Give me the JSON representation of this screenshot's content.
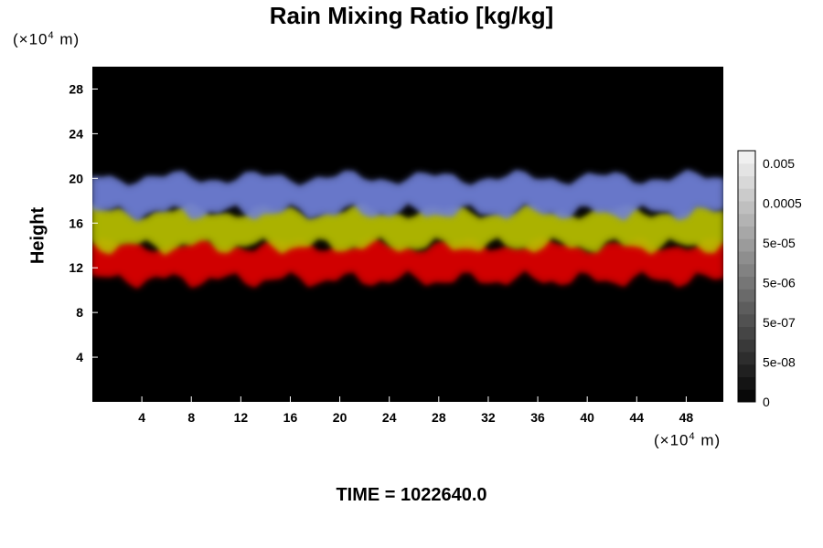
{
  "chart_data": {
    "type": "heatmap",
    "title": "Rain Mixing Ratio [kg/kg]",
    "ylabel": "Height",
    "y_unit": {
      "prefix": "(×10",
      "exp": "4",
      "suffix": " m)"
    },
    "x_unit": {
      "prefix": "(×10",
      "exp": "4",
      "suffix": " m)"
    },
    "x_ticks": [
      "4",
      "8",
      "12",
      "16",
      "20",
      "24",
      "28",
      "32",
      "36",
      "40",
      "44",
      "48"
    ],
    "y_ticks": [
      "4",
      "8",
      "12",
      "16",
      "20",
      "24",
      "28"
    ],
    "xlim": [
      0,
      51
    ],
    "ylim": [
      0,
      30
    ],
    "colorbar": {
      "labels": [
        "0.005",
        "0.0005",
        "5e-05",
        "5e-06",
        "5e-07",
        "5e-08",
        "0"
      ],
      "segments": 20
    },
    "layers": [
      {
        "name": "red",
        "color": "#e00000",
        "y_range": [
          11,
          14
        ]
      },
      {
        "name": "yellow-green",
        "color": "#b8c000",
        "y_range": [
          14,
          17
        ]
      },
      {
        "name": "blue",
        "color": "#7080d8",
        "y_range": [
          17,
          20
        ]
      }
    ],
    "background_color": "#000000"
  },
  "footer": {
    "time_label": "TIME = 1022640.0"
  }
}
